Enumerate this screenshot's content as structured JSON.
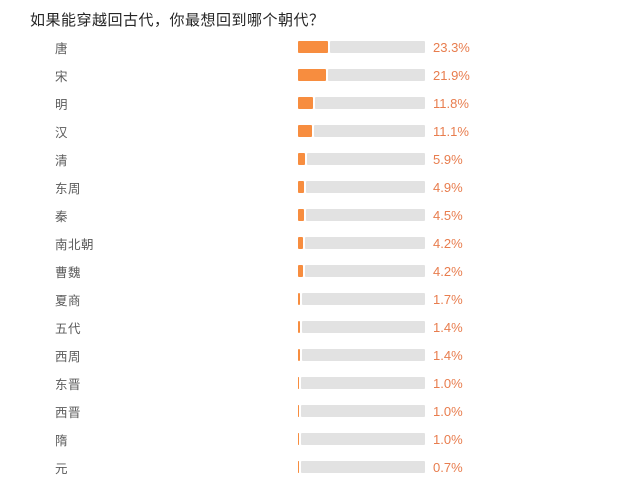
{
  "title": "如果能穿越回古代，你最想回到哪个朝代？",
  "colors": {
    "bar_fill": "#f78d3f",
    "bar_track": "#e2e2e2",
    "value_text": "#e87d4e",
    "label_text": "#5b5b5b",
    "title_text": "#262626",
    "background": "#ffffff"
  },
  "chart_data": {
    "type": "bar",
    "orientation": "horizontal",
    "title": "如果能穿越回古代，你最想回到哪个朝代？",
    "categories": [
      "唐",
      "宋",
      "明",
      "汉",
      "清",
      "东周",
      "秦",
      "南北朝",
      "曹魏",
      "夏商",
      "五代",
      "西周",
      "东晋",
      "西晋",
      "隋",
      "元"
    ],
    "values": [
      23.3,
      21.9,
      11.8,
      11.1,
      5.9,
      4.9,
      4.5,
      4.2,
      4.2,
      1.7,
      1.4,
      1.4,
      1.0,
      1.0,
      1.0,
      0.7
    ],
    "value_labels": [
      "23.3%",
      "21.9%",
      "11.8%",
      "11.1%",
      "5.9%",
      "4.9%",
      "4.5%",
      "4.2%",
      "4.2%",
      "1.7%",
      "1.4%",
      "1.4%",
      "1.0%",
      "1.0%",
      "1.0%",
      "0.7%"
    ],
    "xlabel": "",
    "ylabel": "",
    "xlim": [
      0,
      100
    ],
    "grid": false,
    "legend": false,
    "data_labels_position": "right-of-bar"
  }
}
